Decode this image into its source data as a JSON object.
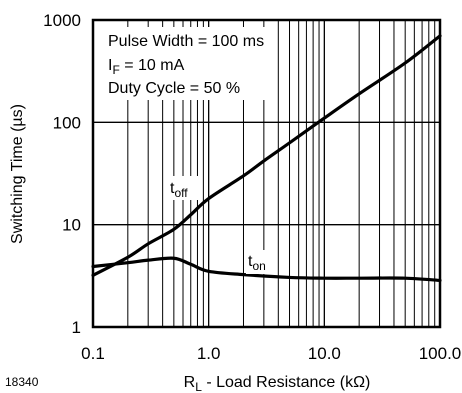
{
  "figure_id": "18340",
  "annotations": {
    "pulse_width": "Pulse Width = 100 ms",
    "if_main": "I",
    "if_sub": "F",
    "if_rest": " = 10 mA",
    "duty_cycle": "Duty Cycle = 50 %"
  },
  "chart_data": {
    "type": "line",
    "xscale": "log",
    "yscale": "log",
    "xlim": [
      0.1,
      100
    ],
    "ylim": [
      1,
      1000
    ],
    "grid": true,
    "xticks": [
      0.1,
      1,
      10,
      100
    ],
    "xtick_labels": [
      "0.1",
      "1.0",
      "10.0",
      "100.0"
    ],
    "yticks": [
      1,
      10,
      100,
      1000
    ],
    "ytick_labels": [
      "1",
      "10",
      "100",
      "1000"
    ],
    "xlabel": {
      "main": "R",
      "sub": "L",
      "rest": " - Load Resistance (kΩ)"
    },
    "ylabel": "Switching Time (µs)",
    "series": [
      {
        "label_main": "t",
        "label_sub": "off",
        "x": [
          0.1,
          0.2,
          0.3,
          0.5,
          0.7,
          1,
          2,
          3,
          5,
          10,
          20,
          50,
          100
        ],
        "y": [
          3.2,
          4.8,
          6.5,
          9,
          12.5,
          18,
          30,
          42,
          63,
          110,
          190,
          380,
          700
        ]
      },
      {
        "label_main": "t",
        "label_sub": "on",
        "x": [
          0.1,
          0.2,
          0.3,
          0.5,
          0.7,
          1,
          2,
          5,
          10,
          20,
          50,
          100
        ],
        "y": [
          3.9,
          4.25,
          4.5,
          4.7,
          4.1,
          3.5,
          3.25,
          3.05,
          3.0,
          3.0,
          3.0,
          2.85
        ]
      }
    ]
  }
}
